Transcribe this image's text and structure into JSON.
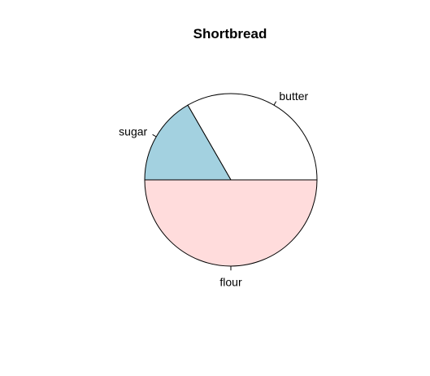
{
  "chart_data": {
    "type": "pie",
    "title": "Shortbread",
    "slices": [
      {
        "label": "butter",
        "value": 1,
        "color": "#ffffff"
      },
      {
        "label": "sugar",
        "value": 0.5,
        "color": "#a3d1e0"
      },
      {
        "label": "flour",
        "value": 1.5,
        "color": "#ffdcdc"
      }
    ],
    "start_angle_deg": 0,
    "direction": "counterclockwise",
    "stroke_color": "#000000"
  }
}
